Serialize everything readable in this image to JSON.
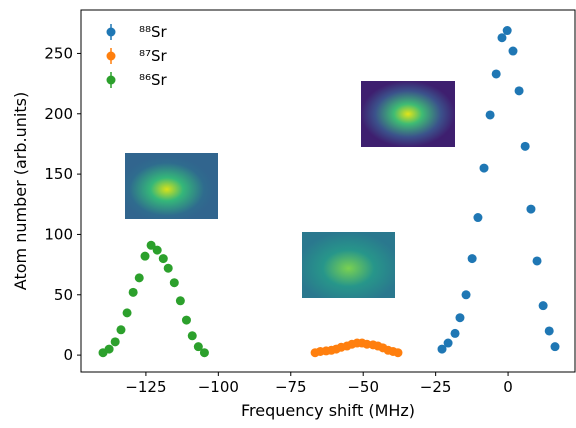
{
  "chart_data": {
    "type": "scatter",
    "xlabel": "Frequency shift (MHz)",
    "ylabel": "Atom number (arb.units)",
    "xlim": [
      -147.4,
      23.1
    ],
    "ylim": [
      -14,
      286
    ],
    "xticks": [
      {
        "value": -125,
        "label": "−125"
      },
      {
        "value": -100,
        "label": "−100"
      },
      {
        "value": -75,
        "label": "−75"
      },
      {
        "value": -50,
        "label": "−50"
      },
      {
        "value": -25,
        "label": "−25"
      },
      0
    ],
    "yticks": [
      0,
      50,
      100,
      150,
      200,
      250
    ],
    "legend": "upper left",
    "series": [
      {
        "name": "⁸⁸Sr",
        "color": "#1f77b4",
        "x": [
          -22.8,
          -20.7,
          -18.3,
          -16.6,
          -14.5,
          -12.4,
          -10.4,
          -8.3,
          -6.2,
          -4.1,
          -2.1,
          -0.3,
          1.7,
          3.8,
          5.9,
          7.9,
          10.0,
          12.1,
          14.2,
          16.2
        ],
        "values": [
          5,
          10,
          18,
          31,
          50,
          80,
          114,
          155,
          199,
          233,
          263,
          269,
          252,
          219,
          173,
          121,
          78,
          41,
          20,
          7
        ]
      },
      {
        "name": "⁸⁷Sr",
        "color": "#ff7f0e",
        "x": [
          -66.6,
          -64.8,
          -62.8,
          -61.0,
          -59.3,
          -57.6,
          -55.6,
          -53.9,
          -52.1,
          -50.4,
          -48.7,
          -46.6,
          -44.9,
          -43.2,
          -41.4,
          -39.7,
          -38.0
        ],
        "values": [
          2,
          3,
          3.5,
          4,
          5,
          6.5,
          7.5,
          9,
          10,
          10,
          9,
          8.5,
          7.5,
          6,
          4,
          3,
          2
        ]
      },
      {
        "name": "⁸⁶Sr",
        "color": "#2ca02c",
        "x": [
          -139.8,
          -137.7,
          -135.6,
          -133.6,
          -131.5,
          -129.4,
          -127.3,
          -125.3,
          -123.2,
          -121.1,
          -119.0,
          -117.3,
          -115.2,
          -113.1,
          -111.0,
          -109.0,
          -106.9,
          -104.8
        ],
        "values": [
          2,
          5,
          11,
          21,
          35,
          52,
          64,
          82,
          91,
          87,
          80,
          72,
          60,
          45,
          29,
          16,
          7,
          2
        ]
      }
    ]
  }
}
